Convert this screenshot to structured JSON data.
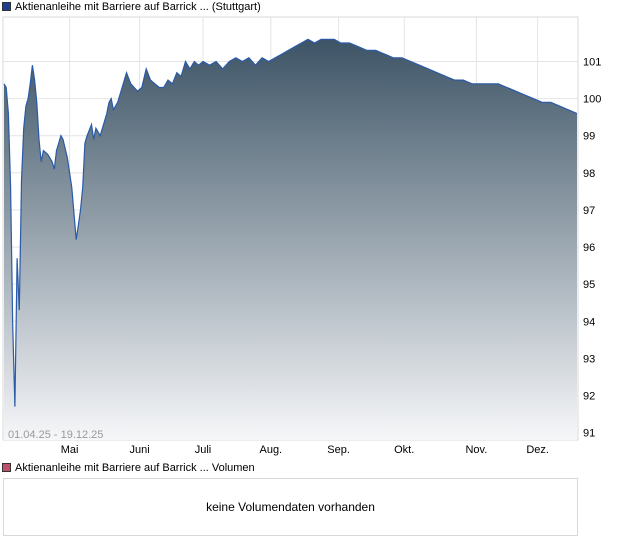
{
  "legend": {
    "price_label": "Aktienanleihe mit Barriere auf Barrick ... (Stuttgart)",
    "price_color": "#1f3d8f",
    "volume_label": "Aktienanleihe mit Barriere auf Barrick ... Volumen",
    "volume_color": "#c0506a"
  },
  "date_range": "01.04.25 - 19.12.25",
  "volume_panel": {
    "message": "keine Volumendaten vorhanden"
  },
  "chart_data": {
    "type": "area",
    "title": "",
    "xlabel": "",
    "ylabel": "",
    "ylim": [
      90.8,
      102.2
    ],
    "y_ticks": [
      91,
      92,
      93,
      94,
      95,
      96,
      97,
      98,
      99,
      100,
      101
    ],
    "x_ticks": [
      {
        "label": "Mai",
        "date": "2025-05-01"
      },
      {
        "label": "Juni",
        "date": "2025-06-02"
      },
      {
        "label": "Juli",
        "date": "2025-07-01"
      },
      {
        "label": "Aug.",
        "date": "2025-08-01"
      },
      {
        "label": "Sep.",
        "date": "2025-09-01"
      },
      {
        "label": "Okt.",
        "date": "2025-10-01"
      },
      {
        "label": "Nov.",
        "date": "2025-11-03"
      },
      {
        "label": "Dez.",
        "date": "2025-12-01"
      }
    ],
    "grid": true,
    "line_color": "#2a5aa8",
    "fill_top_color": "#3d5466",
    "fill_bottom_color": "#f6f7f9",
    "series": [
      {
        "name": "Aktienanleihe mit Barriere auf Barrick ... (Stuttgart)",
        "points": [
          [
            "2025-04-01",
            100.4
          ],
          [
            "2025-04-02",
            100.3
          ],
          [
            "2025-04-03",
            99.6
          ],
          [
            "2025-04-04",
            97.6
          ],
          [
            "2025-04-05",
            93.9
          ],
          [
            "2025-04-06",
            91.7
          ],
          [
            "2025-04-07",
            95.7
          ],
          [
            "2025-04-08",
            94.3
          ],
          [
            "2025-04-09",
            97.8
          ],
          [
            "2025-04-10",
            99.2
          ],
          [
            "2025-04-11",
            99.8
          ],
          [
            "2025-04-12",
            100.0
          ],
          [
            "2025-04-13",
            100.4
          ],
          [
            "2025-04-14",
            100.9
          ],
          [
            "2025-04-15",
            100.5
          ],
          [
            "2025-04-16",
            99.9
          ],
          [
            "2025-04-17",
            98.9
          ],
          [
            "2025-04-18",
            98.3
          ],
          [
            "2025-04-19",
            98.6
          ],
          [
            "2025-04-21",
            98.5
          ],
          [
            "2025-04-23",
            98.3
          ],
          [
            "2025-04-24",
            98.1
          ],
          [
            "2025-04-25",
            98.6
          ],
          [
            "2025-04-26",
            98.8
          ],
          [
            "2025-04-27",
            99.0
          ],
          [
            "2025-04-28",
            98.9
          ],
          [
            "2025-04-30",
            98.4
          ],
          [
            "2025-05-02",
            97.6
          ],
          [
            "2025-05-03",
            96.9
          ],
          [
            "2025-05-04",
            96.2
          ],
          [
            "2025-05-05",
            96.6
          ],
          [
            "2025-05-06",
            97.0
          ],
          [
            "2025-05-07",
            97.6
          ],
          [
            "2025-05-08",
            98.8
          ],
          [
            "2025-05-09",
            99.0
          ],
          [
            "2025-05-11",
            99.3
          ],
          [
            "2025-05-12",
            98.9
          ],
          [
            "2025-05-13",
            99.2
          ],
          [
            "2025-05-15",
            99.0
          ],
          [
            "2025-05-17",
            99.4
          ],
          [
            "2025-05-18",
            99.6
          ],
          [
            "2025-05-19",
            99.9
          ],
          [
            "2025-05-20",
            100.0
          ],
          [
            "2025-05-21",
            99.7
          ],
          [
            "2025-05-23",
            99.9
          ],
          [
            "2025-05-25",
            100.3
          ],
          [
            "2025-05-27",
            100.7
          ],
          [
            "2025-05-29",
            100.4
          ],
          [
            "2025-06-01",
            100.2
          ],
          [
            "2025-06-03",
            100.3
          ],
          [
            "2025-06-05",
            100.8
          ],
          [
            "2025-06-07",
            100.5
          ],
          [
            "2025-06-09",
            100.4
          ],
          [
            "2025-06-11",
            100.3
          ],
          [
            "2025-06-13",
            100.3
          ],
          [
            "2025-06-15",
            100.5
          ],
          [
            "2025-06-17",
            100.4
          ],
          [
            "2025-06-19",
            100.7
          ],
          [
            "2025-06-21",
            100.6
          ],
          [
            "2025-06-23",
            101.0
          ],
          [
            "2025-06-25",
            100.8
          ],
          [
            "2025-06-27",
            101.0
          ],
          [
            "2025-06-29",
            100.9
          ],
          [
            "2025-07-01",
            101.0
          ],
          [
            "2025-07-04",
            100.9
          ],
          [
            "2025-07-07",
            101.0
          ],
          [
            "2025-07-10",
            100.8
          ],
          [
            "2025-07-13",
            101.0
          ],
          [
            "2025-07-16",
            101.1
          ],
          [
            "2025-07-19",
            101.0
          ],
          [
            "2025-07-22",
            101.1
          ],
          [
            "2025-07-25",
            100.9
          ],
          [
            "2025-07-28",
            101.1
          ],
          [
            "2025-07-31",
            101.0
          ],
          [
            "2025-08-03",
            101.1
          ],
          [
            "2025-08-06",
            101.2
          ],
          [
            "2025-08-09",
            101.3
          ],
          [
            "2025-08-12",
            101.4
          ],
          [
            "2025-08-15",
            101.5
          ],
          [
            "2025-08-18",
            101.6
          ],
          [
            "2025-08-21",
            101.5
          ],
          [
            "2025-08-24",
            101.6
          ],
          [
            "2025-08-27",
            101.6
          ],
          [
            "2025-08-30",
            101.6
          ],
          [
            "2025-09-02",
            101.5
          ],
          [
            "2025-09-06",
            101.5
          ],
          [
            "2025-09-10",
            101.4
          ],
          [
            "2025-09-14",
            101.3
          ],
          [
            "2025-09-18",
            101.3
          ],
          [
            "2025-09-22",
            101.2
          ],
          [
            "2025-09-26",
            101.1
          ],
          [
            "2025-09-30",
            101.1
          ],
          [
            "2025-10-04",
            101.0
          ],
          [
            "2025-10-08",
            100.9
          ],
          [
            "2025-10-12",
            100.8
          ],
          [
            "2025-10-16",
            100.7
          ],
          [
            "2025-10-20",
            100.6
          ],
          [
            "2025-10-24",
            100.5
          ],
          [
            "2025-10-28",
            100.5
          ],
          [
            "2025-11-01",
            100.4
          ],
          [
            "2025-11-05",
            100.4
          ],
          [
            "2025-11-09",
            100.4
          ],
          [
            "2025-11-13",
            100.4
          ],
          [
            "2025-11-17",
            100.3
          ],
          [
            "2025-11-21",
            100.2
          ],
          [
            "2025-11-25",
            100.1
          ],
          [
            "2025-11-29",
            100.0
          ],
          [
            "2025-12-03",
            99.9
          ],
          [
            "2025-12-07",
            99.9
          ],
          [
            "2025-12-11",
            99.8
          ],
          [
            "2025-12-15",
            99.7
          ],
          [
            "2025-12-19",
            99.6
          ]
        ]
      }
    ]
  }
}
